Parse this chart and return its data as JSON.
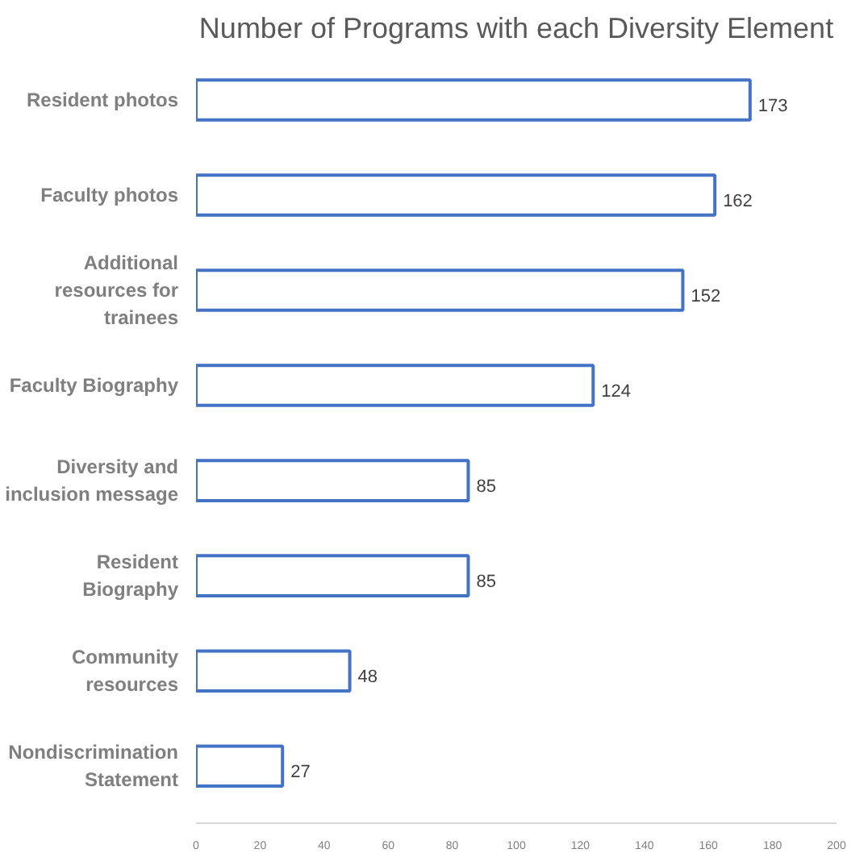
{
  "chart_data": {
    "type": "bar",
    "orientation": "horizontal",
    "title": "Number of Programs with each Diversity Element",
    "categories": [
      "Resident photos",
      "Faculty photos",
      "Additional\nresources for\ntrainees",
      "Faculty Biography",
      "Diversity and\ninclusion message",
      "Resident\nBiography",
      "Community\nresources",
      "Nondiscrimination\nStatement"
    ],
    "values": [
      173,
      162,
      152,
      124,
      85,
      85,
      48,
      27
    ],
    "color": "#4472c4",
    "data_labels": true,
    "xlim": [
      0,
      200
    ],
    "xticks": [
      0,
      20,
      40,
      60,
      80,
      100,
      120,
      140,
      160,
      180,
      200
    ],
    "grid": false
  }
}
